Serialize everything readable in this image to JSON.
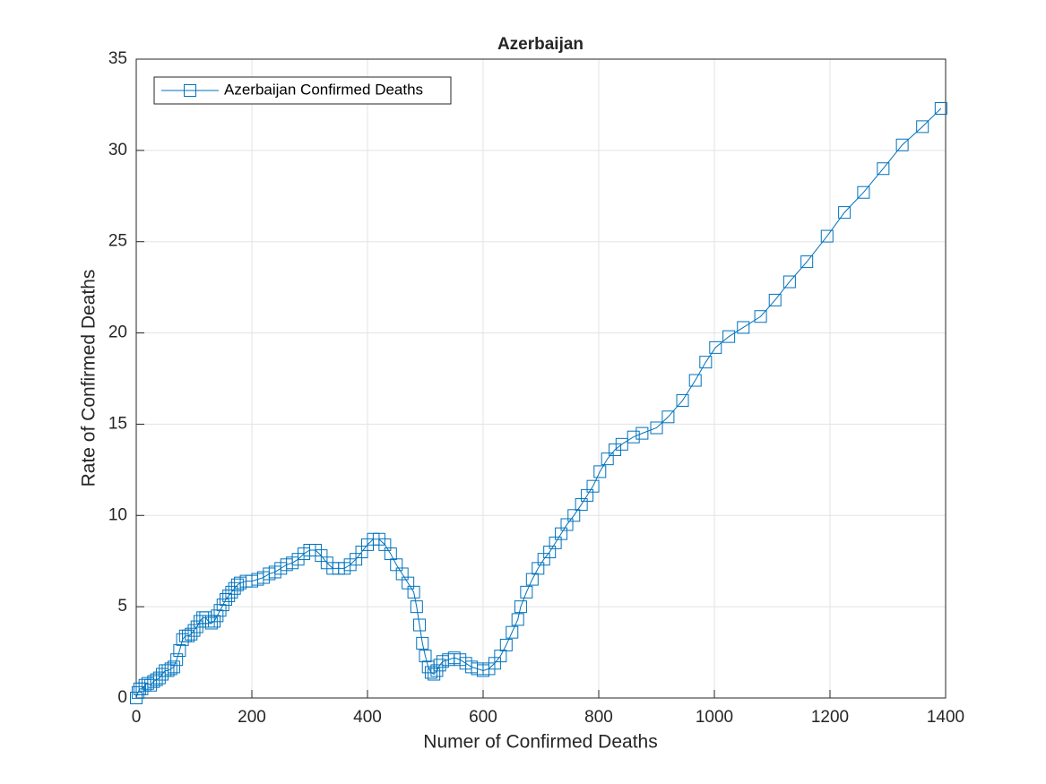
{
  "chart_data": {
    "type": "line",
    "title": "Azerbaijan",
    "xlabel": "Numer of Confirmed Deaths",
    "ylabel": "Rate of Confirmed Deaths",
    "x": [
      0,
      3,
      6,
      10,
      15,
      20,
      25,
      30,
      35,
      40,
      45,
      50,
      55,
      60,
      65,
      70,
      75,
      80,
      85,
      90,
      95,
      100,
      105,
      110,
      115,
      120,
      125,
      130,
      135,
      140,
      145,
      150,
      155,
      160,
      165,
      170,
      175,
      180,
      190,
      200,
      210,
      220,
      230,
      240,
      250,
      260,
      270,
      280,
      290,
      300,
      310,
      320,
      330,
      340,
      350,
      360,
      370,
      380,
      390,
      400,
      410,
      420,
      430,
      440,
      450,
      460,
      470,
      480,
      485,
      490,
      495,
      500,
      505,
      510,
      515,
      520,
      525,
      530,
      540,
      550,
      560,
      570,
      580,
      590,
      600,
      610,
      620,
      630,
      640,
      650,
      660,
      665,
      675,
      685,
      695,
      705,
      715,
      725,
      735,
      745,
      757,
      770,
      780,
      790,
      802,
      815,
      828,
      840,
      860,
      875,
      900,
      920,
      945,
      967,
      985,
      1002,
      1025,
      1050,
      1080,
      1105,
      1130,
      1160,
      1195,
      1225,
      1258,
      1292,
      1325,
      1360,
      1392
    ],
    "series": [
      {
        "name": "Azerbaijan Confirmed Deaths",
        "color": "#0072bd",
        "values": [
          0,
          0.3,
          0.5,
          0.5,
          0.7,
          0.8,
          0.7,
          0.9,
          1.0,
          1.1,
          1.3,
          1.5,
          1.5,
          1.6,
          1.7,
          2.1,
          2.6,
          3.2,
          3.4,
          3.4,
          3.5,
          3.7,
          3.9,
          4.2,
          4.4,
          4.4,
          4.2,
          4.1,
          4.2,
          4.5,
          4.8,
          5.1,
          5.4,
          5.6,
          5.8,
          6.0,
          6.2,
          6.3,
          6.4,
          6.4,
          6.5,
          6.6,
          6.8,
          6.9,
          7.1,
          7.3,
          7.4,
          7.6,
          7.9,
          8.1,
          8.1,
          7.8,
          7.4,
          7.1,
          7.1,
          7.1,
          7.3,
          7.6,
          8.0,
          8.4,
          8.7,
          8.7,
          8.4,
          7.9,
          7.3,
          6.8,
          6.3,
          5.8,
          5.0,
          4.0,
          3.0,
          2.3,
          1.7,
          1.4,
          1.3,
          1.5,
          1.8,
          2.0,
          2.1,
          2.2,
          2.1,
          1.9,
          1.7,
          1.6,
          1.5,
          1.6,
          1.9,
          2.3,
          2.9,
          3.6,
          4.3,
          5.0,
          5.8,
          6.5,
          7.1,
          7.6,
          8.0,
          8.5,
          9.0,
          9.5,
          10.0,
          10.6,
          11.1,
          11.6,
          12.4,
          13.1,
          13.6,
          13.9,
          14.3,
          14.5,
          14.8,
          15.4,
          16.3,
          17.4,
          18.4,
          19.2,
          19.8,
          20.3,
          20.9,
          21.8,
          22.8,
          23.9,
          25.3,
          26.6,
          27.7,
          29.0,
          30.3,
          31.3,
          32.3
        ]
      }
    ],
    "xlim": [
      0,
      1400
    ],
    "xticks": [
      0,
      200,
      400,
      600,
      800,
      1000,
      1200,
      1400
    ],
    "ylim": [
      0,
      35
    ],
    "yticks": [
      0,
      5,
      10,
      15,
      20,
      25,
      30,
      35
    ],
    "grid": true,
    "legend": "upper-left",
    "marker": "square"
  }
}
